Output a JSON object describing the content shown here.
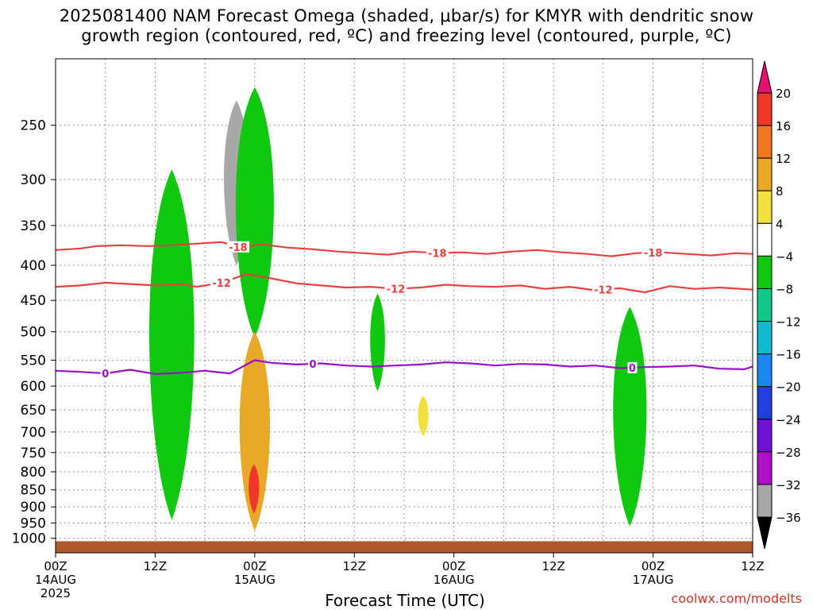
{
  "title": {
    "line1": "2025081400 NAM Forecast Omega (shaded, μbar/s) for KMYR with dendritic snow",
    "line2": "growth region (contoured, red, ºC) and freezing level (contoured, purple, ºC)"
  },
  "credit": "coolwx.com/modelts",
  "chart_data": {
    "type": "heatmap",
    "xlabel": "Forecast Time (UTC)",
    "ylabel": "",
    "y_scale": "log-pressure",
    "ylim": [
      1050,
      200
    ],
    "y_ticks": [
      250,
      300,
      350,
      400,
      450,
      500,
      550,
      600,
      650,
      700,
      750,
      800,
      850,
      900,
      950,
      1000
    ],
    "xlim": [
      0,
      84
    ],
    "x_ticks": [
      {
        "hour": 0,
        "label": "00Z",
        "date": "14AUG",
        "year": "2025"
      },
      {
        "hour": 12,
        "label": "12Z",
        "date": "",
        "year": ""
      },
      {
        "hour": 24,
        "label": "00Z",
        "date": "15AUG",
        "year": ""
      },
      {
        "hour": 36,
        "label": "12Z",
        "date": "",
        "year": ""
      },
      {
        "hour": 48,
        "label": "00Z",
        "date": "16AUG",
        "year": ""
      },
      {
        "hour": 60,
        "label": "12Z",
        "date": "",
        "year": ""
      },
      {
        "hour": 72,
        "label": "00Z",
        "date": "17AUG",
        "year": ""
      },
      {
        "hour": 84,
        "label": "12Z",
        "date": "",
        "year": ""
      }
    ],
    "grid": true,
    "colorbar": {
      "levels": [
        20,
        16,
        12,
        8,
        4,
        -4,
        -8,
        -12,
        -16,
        -20,
        -24,
        -28,
        -32,
        -36
      ],
      "colors": [
        "#e8106e",
        "#f03828",
        "#f07820",
        "#e8a828",
        "#f0e040",
        "#ffffff",
        "#10c810",
        "#10c888",
        "#10b8d0",
        "#1888f0",
        "#2040e0",
        "#7010d8",
        "#b010c8",
        "#a8a8a8",
        "#000000"
      ]
    },
    "ground": {
      "from_pressure": 1010,
      "color": "#b0582a"
    },
    "omega_regions": [
      {
        "label": "-8",
        "center_hour": 14.0,
        "p_top": 290,
        "p_bottom": 940
      },
      {
        "label": "-36",
        "center_hour": 21.8,
        "p_top": 230,
        "p_bottom": 400
      },
      {
        "label": "-8",
        "center_hour": 24.0,
        "p_top": 220,
        "p_bottom": 510
      },
      {
        "label": "8",
        "center_hour": 24.0,
        "p_top": 500,
        "p_bottom": 975
      },
      {
        "label": "16",
        "center_hour": 23.9,
        "p_top": 780,
        "p_bottom": 920
      },
      {
        "label": "-8",
        "center_hour": 38.8,
        "p_top": 440,
        "p_bottom": 610
      },
      {
        "label": "4",
        "center_hour": 44.3,
        "p_top": 620,
        "p_bottom": 710
      },
      {
        "label": "-8",
        "center_hour": 69.2,
        "p_top": 460,
        "p_bottom": 960
      }
    ],
    "contours": [
      {
        "name": "-18",
        "color": "#e84040",
        "hours": [
          0,
          3,
          5,
          8,
          11,
          14,
          17,
          20,
          22,
          25,
          28,
          31,
          34,
          37,
          40,
          43,
          46,
          49,
          52,
          55,
          58,
          61,
          64,
          67,
          70,
          73,
          76,
          79,
          82,
          84
        ],
        "pressures": [
          380,
          378,
          375,
          374,
          375,
          374,
          372,
          370,
          376,
          373,
          377,
          379,
          382,
          384,
          386,
          382,
          384,
          383,
          385,
          382,
          380,
          383,
          385,
          388,
          384,
          383,
          385,
          387,
          384,
          385
        ],
        "labels": [
          {
            "hour": 22,
            "text": "-18"
          },
          {
            "hour": 46,
            "text": "-18"
          },
          {
            "hour": 72,
            "text": "-18"
          }
        ]
      },
      {
        "name": "-12",
        "color": "#e84040",
        "hours": [
          0,
          3,
          6,
          9,
          12,
          15,
          17,
          20,
          23,
          26,
          29,
          32,
          35,
          38,
          41,
          44,
          47,
          50,
          53,
          56,
          59,
          62,
          65,
          68,
          71,
          74,
          77,
          80,
          84
        ],
        "pressures": [
          430,
          428,
          424,
          426,
          428,
          426,
          430,
          424,
          412,
          418,
          425,
          428,
          431,
          430,
          433,
          431,
          427,
          429,
          430,
          428,
          433,
          430,
          435,
          432,
          438,
          429,
          433,
          431,
          434
        ],
        "labels": [
          {
            "hour": 20,
            "text": "-12"
          },
          {
            "hour": 41,
            "text": "-12"
          },
          {
            "hour": 66,
            "text": "-12"
          }
        ]
      },
      {
        "name": "0",
        "color": "#9810c8",
        "hours": [
          0,
          3,
          6,
          9,
          12,
          15,
          18,
          21,
          24,
          26,
          29,
          32,
          35,
          38,
          41,
          44,
          47,
          50,
          53,
          56,
          59,
          62,
          65,
          68,
          71,
          74,
          77,
          80,
          83,
          84
        ],
        "pressures": [
          570,
          572,
          575,
          568,
          576,
          574,
          570,
          575,
          550,
          555,
          558,
          556,
          560,
          562,
          560,
          558,
          554,
          556,
          560,
          557,
          558,
          562,
          560,
          565,
          563,
          562,
          560,
          566,
          567,
          562
        ],
        "labels": [
          {
            "hour": 6,
            "text": "0"
          },
          {
            "hour": 31,
            "text": "0"
          },
          {
            "hour": 69.5,
            "text": "0"
          }
        ]
      }
    ]
  }
}
